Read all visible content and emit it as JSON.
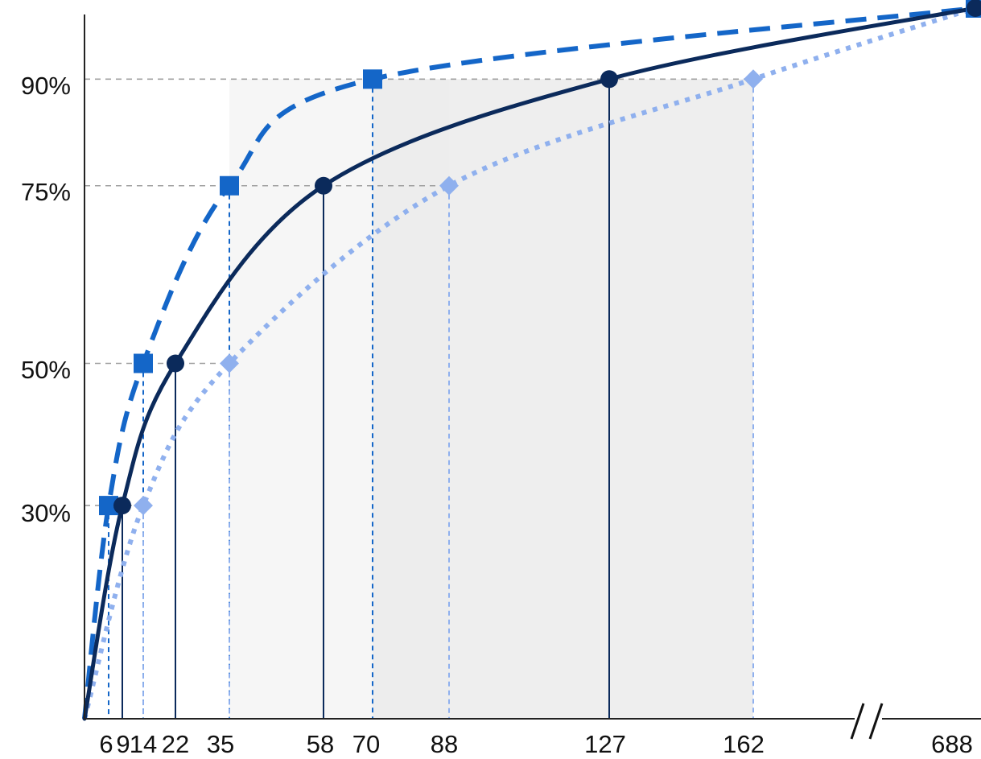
{
  "chart_data": {
    "type": "line",
    "title": "",
    "xlabel": "",
    "ylabel": "",
    "x_axis_break": {
      "between": [
        162,
        688
      ]
    },
    "x_ticks": [
      "6",
      "9",
      "14",
      "22",
      "35",
      "58",
      "70",
      "88",
      "127",
      "162",
      "688"
    ],
    "y_ticks": [
      "30%",
      "50%",
      "75%",
      "90%"
    ],
    "ylim": [
      0,
      1
    ],
    "grid_lines_y": [
      0.3,
      0.5,
      0.75,
      0.9
    ],
    "grid": "dashed horizontal lines at marked percentiles",
    "series": [
      {
        "key": "dashed_blue",
        "color": "#1466c8",
        "line_style": "dashed",
        "marker": "square",
        "points": [
          [
            6,
            0.3
          ],
          [
            14,
            0.5
          ],
          [
            35,
            0.75
          ],
          [
            70,
            0.9
          ],
          [
            688,
            1.0
          ]
        ]
      },
      {
        "key": "solid_navy",
        "color": "#0b2a5b",
        "line_style": "solid",
        "marker": "circle",
        "points": [
          [
            9,
            0.3
          ],
          [
            22,
            0.5
          ],
          [
            58,
            0.75
          ],
          [
            127,
            0.9
          ],
          [
            688,
            1.0
          ]
        ]
      },
      {
        "key": "dotted_light",
        "color": "#8fb0ee",
        "line_style": "dotted",
        "marker": "diamond",
        "points": [
          [
            14,
            0.3
          ],
          [
            35,
            0.5
          ],
          [
            88,
            0.75
          ],
          [
            162,
            0.9
          ],
          [
            688,
            1.0
          ]
        ]
      }
    ],
    "shaded_bands": [
      {
        "x_range": [
          35,
          88
        ]
      },
      {
        "x_range": [
          70,
          162
        ]
      }
    ],
    "colors": {
      "shade_light": "#f4f4f4",
      "shade_dark": "#ebebeb",
      "grid": "#a0a0a0",
      "axis": "#222222"
    }
  }
}
